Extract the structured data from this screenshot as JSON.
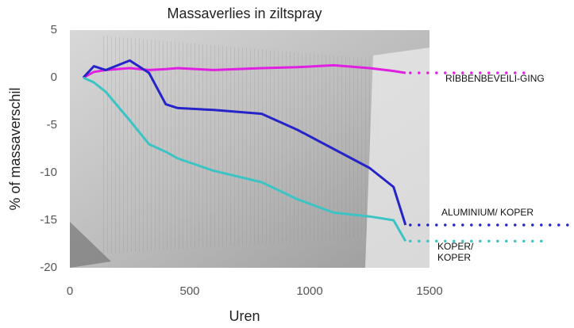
{
  "chart_data": {
    "type": "line",
    "title": "Massaverlies in ziltspray",
    "x_label": "Uren",
    "y_label": "% of massaverschil",
    "x": [
      56,
      100,
      150,
      250,
      330,
      400,
      450,
      600,
      800,
      950,
      1100,
      1250,
      1350,
      1400
    ],
    "series": [
      {
        "name": "RIBBENBEVEILI-GING",
        "color": "#e020e0",
        "values": [
          0,
          0.6,
          0.8,
          1.0,
          0.8,
          0.9,
          1.0,
          0.8,
          1.0,
          1.1,
          1.3,
          1.0,
          0.7,
          0.5
        ]
      },
      {
        "name": "ALUMINIUM/ KOPER",
        "color": "#2424c8",
        "values": [
          0,
          1.2,
          0.8,
          1.8,
          0.5,
          -2.8,
          -3.2,
          -3.4,
          -3.8,
          -5.5,
          -7.5,
          -9.5,
          -11.5,
          -15.5
        ]
      },
      {
        "name": "KOPER/ KOPER",
        "color": "#3cc4c4",
        "values": [
          0,
          -0.5,
          -1.5,
          -4.5,
          -7,
          -7.8,
          -8.5,
          -9.8,
          -11,
          -12.8,
          -14.2,
          -14.6,
          -15,
          -17.2
        ]
      }
    ],
    "xlim": [
      0,
      1500
    ],
    "ylim": [
      -20,
      5
    ],
    "xticks": [
      0,
      500,
      1000,
      1500
    ],
    "yticks": [
      5,
      0,
      -5,
      -10,
      -15,
      -20
    ],
    "grid": false
  }
}
